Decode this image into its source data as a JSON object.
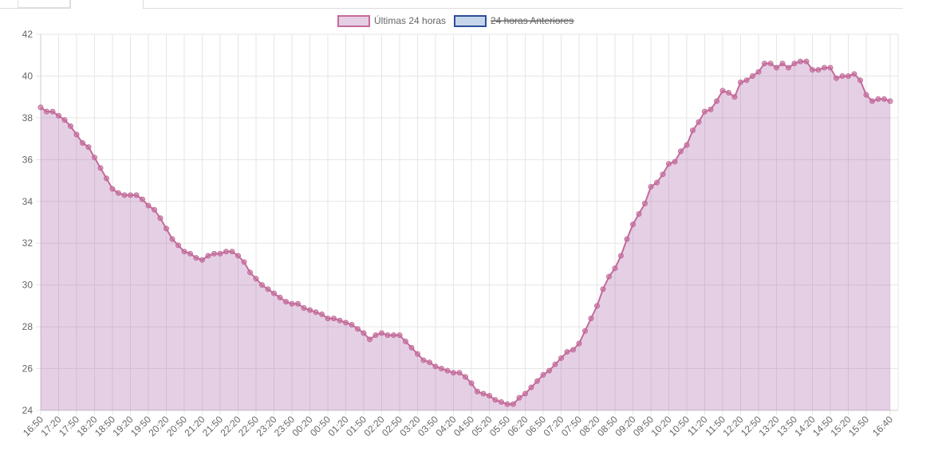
{
  "tabs": [
    {
      "label": ""
    },
    {
      "label": ""
    }
  ],
  "colors": {
    "current_fill": "rgba(160,84,160,0.28)",
    "current_line": "#c46a9a",
    "current_point": "#c06a98",
    "previous_fill": "#c6d6ea",
    "previous_line": "#2c4f99",
    "grid": "#e6e6e6",
    "text": "#666666"
  },
  "chart_data": {
    "type": "area",
    "legend": {
      "position": "top-center"
    },
    "series": [
      {
        "name": "Últimas 24 horas",
        "hidden": false,
        "values": [
          38.5,
          38.3,
          38.3,
          38.1,
          37.9,
          37.6,
          37.2,
          36.8,
          36.6,
          36.1,
          35.6,
          35.1,
          34.6,
          34.4,
          34.3,
          34.3,
          34.3,
          34.1,
          33.8,
          33.6,
          33.2,
          32.7,
          32.2,
          31.9,
          31.6,
          31.5,
          31.3,
          31.2,
          31.4,
          31.5,
          31.5,
          31.6,
          31.6,
          31.4,
          31.1,
          30.6,
          30.3,
          30.0,
          29.8,
          29.6,
          29.4,
          29.2,
          29.1,
          29.1,
          28.9,
          28.8,
          28.7,
          28.6,
          28.4,
          28.4,
          28.3,
          28.2,
          28.1,
          27.9,
          27.7,
          27.4,
          27.6,
          27.7,
          27.6,
          27.6,
          27.6,
          27.3,
          27.0,
          26.7,
          26.4,
          26.3,
          26.1,
          26.0,
          25.9,
          25.8,
          25.8,
          25.6,
          25.3,
          24.9,
          24.8,
          24.7,
          24.5,
          24.4,
          24.3,
          24.3,
          24.6,
          24.8,
          25.1,
          25.4,
          25.7,
          25.9,
          26.2,
          26.5,
          26.8,
          26.9,
          27.2,
          27.8,
          28.4,
          29.0,
          29.8,
          30.4,
          30.8,
          31.4,
          32.2,
          32.9,
          33.4,
          33.9,
          34.7,
          34.9,
          35.3,
          35.8,
          35.9,
          36.4,
          36.7,
          37.4,
          37.8,
          38.3,
          38.4,
          38.8,
          39.3,
          39.2,
          39.0,
          39.7,
          39.8,
          40.0,
          40.2,
          40.6,
          40.6,
          40.4,
          40.6,
          40.4,
          40.6,
          40.7,
          40.7,
          40.3,
          40.3,
          40.4,
          40.4,
          39.9,
          40.0,
          40.0,
          40.1,
          39.8,
          39.1,
          38.8,
          38.9,
          38.9,
          38.8
        ]
      },
      {
        "name": "24 horas Anteriores",
        "hidden": true,
        "values": []
      }
    ],
    "x_tick_labels": [
      "16:50",
      "17:20",
      "17:50",
      "18:20",
      "18:50",
      "19:20",
      "19:50",
      "20:20",
      "20:50",
      "21:20",
      "21:50",
      "22:20",
      "22:50",
      "23:20",
      "23:50",
      "00:20",
      "00:50",
      "01:20",
      "01:50",
      "02:20",
      "02:50",
      "03:20",
      "03:50",
      "04:20",
      "04:50",
      "05:20",
      "05:50",
      "06:20",
      "06:50",
      "07:20",
      "07:50",
      "08:20",
      "08:50",
      "09:20",
      "09:50",
      "10:20",
      "10:50",
      "11:20",
      "11:50",
      "12:20",
      "12:50",
      "13:20",
      "13:50",
      "14:20",
      "14:50",
      "15:20",
      "15:50",
      "16:40"
    ],
    "ylim": [
      24,
      42
    ],
    "y_ticks": [
      24,
      26,
      28,
      30,
      32,
      34,
      36,
      38,
      40,
      42
    ],
    "grid": true
  }
}
